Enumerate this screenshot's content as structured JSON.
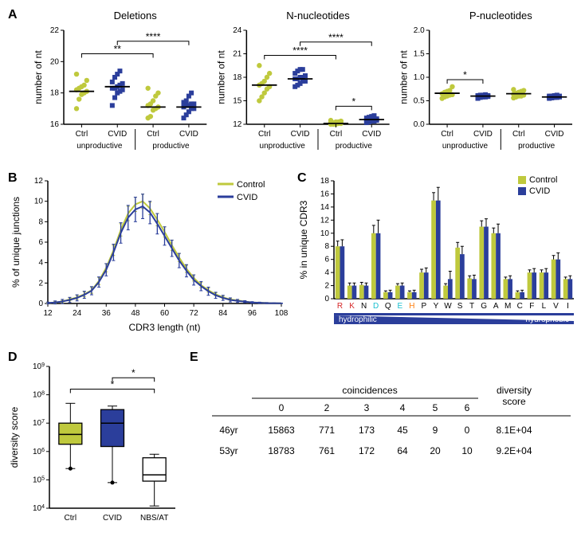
{
  "palette": {
    "control": "#bfc93d",
    "cvid": "#2b3e9b",
    "axis": "#000000",
    "bg": "#ffffff",
    "text": "#000000",
    "red": "#d62728",
    "cyan": "#17becf",
    "orange": "#ff7f0e"
  },
  "panelA": {
    "letter": "A",
    "charts": [
      {
        "title": "Deletions",
        "ylabel": "number of nt",
        "ylim": [
          16,
          22
        ],
        "ytick_step": 2,
        "groups": [
          "Ctrl",
          "CVID",
          "Ctrl",
          "CVID"
        ],
        "subgroups": [
          "unproductive",
          "productive"
        ],
        "marker": [
          "circle",
          "square",
          "circle",
          "square"
        ],
        "color_idx": [
          0,
          1,
          0,
          1
        ],
        "points": [
          [
            17.6,
            18.0,
            18.2,
            18.4,
            18.5,
            18.1,
            17.9,
            18.8,
            19.2,
            17.0,
            18.3
          ],
          [
            17.7,
            18.3,
            18.4,
            18.5,
            18.6,
            18.7,
            18.2,
            19.0,
            19.4,
            19.2,
            17.2,
            18.1,
            18.3,
            18.0
          ],
          [
            17.1,
            16.9,
            17.0,
            17.2,
            17.3,
            17.5,
            16.4,
            17.8,
            18.0,
            18.3,
            16.5
          ],
          [
            16.6,
            17.0,
            17.1,
            17.2,
            17.3,
            17.4,
            17.5,
            17.8,
            18.0,
            16.4,
            16.8,
            17.0,
            17.2,
            17.3
          ]
        ],
        "medians": [
          18.1,
          18.4,
          17.1,
          17.1
        ],
        "sig": [
          {
            "from": 0,
            "to": 2,
            "label": "**",
            "y": 20.5
          },
          {
            "from": 1,
            "to": 3,
            "label": "****",
            "y": 21.3
          }
        ]
      },
      {
        "title": "N-nucleotides",
        "ylabel": "number of nt",
        "ylim": [
          12,
          24
        ],
        "ytick_step": 3,
        "groups": [
          "Ctrl",
          "CVID",
          "Ctrl",
          "CVID"
        ],
        "subgroups": [
          "unproductive",
          "productive"
        ],
        "marker": [
          "circle",
          "square",
          "circle",
          "square"
        ],
        "color_idx": [
          0,
          1,
          0,
          1
        ],
        "points": [
          [
            15.0,
            15.5,
            16.0,
            16.5,
            17.0,
            17.2,
            17.5,
            18.0,
            18.5,
            19.5,
            16.8
          ],
          [
            16.8,
            17.2,
            17.5,
            17.8,
            18.0,
            18.2,
            18.5,
            18.8,
            19.0,
            19.0,
            17.5,
            17.0,
            18.0,
            17.8
          ],
          [
            12.0,
            12.0,
            12.1,
            12.1,
            12.2,
            12.2,
            12.3,
            12.4,
            12.5,
            12.0,
            12.3
          ],
          [
            12.4,
            12.5,
            12.6,
            12.7,
            12.8,
            12.9,
            13.0,
            13.1,
            12.2,
            12.3,
            12.5,
            12.7,
            12.6,
            12.4
          ]
        ],
        "medians": [
          17.0,
          17.8,
          12.1,
          12.6
        ],
        "sig": [
          {
            "from": 0,
            "to": 2,
            "label": "****",
            "y": 20.8
          },
          {
            "from": 1,
            "to": 3,
            "label": "****",
            "y": 22.5
          },
          {
            "from": 2,
            "to": 3,
            "label": "*",
            "y": 14.3
          }
        ]
      },
      {
        "title": "P-nucleotides",
        "ylabel": "number of nt",
        "ylim": [
          0.0,
          2.0
        ],
        "ytick_step": 0.5,
        "groups": [
          "Ctrl",
          "CVID",
          "Ctrl",
          "CVID"
        ],
        "subgroups": [
          "unproductive",
          "productive"
        ],
        "marker": [
          "circle",
          "square",
          "circle",
          "square"
        ],
        "color_idx": [
          0,
          1,
          0,
          1
        ],
        "points": [
          [
            0.58,
            0.6,
            0.62,
            0.65,
            0.68,
            0.7,
            0.72,
            0.8,
            0.55,
            0.63
          ],
          [
            0.55,
            0.57,
            0.58,
            0.59,
            0.6,
            0.61,
            0.62,
            0.63,
            0.58,
            0.6,
            0.61,
            0.62,
            0.6,
            0.59
          ],
          [
            0.58,
            0.6,
            0.62,
            0.64,
            0.66,
            0.68,
            0.7,
            0.72,
            0.74,
            0.56,
            0.6
          ],
          [
            0.55,
            0.56,
            0.57,
            0.58,
            0.58,
            0.59,
            0.6,
            0.6,
            0.61,
            0.62,
            0.58,
            0.59,
            0.6,
            0.57
          ]
        ],
        "medians": [
          0.66,
          0.6,
          0.65,
          0.58
        ],
        "sig": [
          {
            "from": 0,
            "to": 1,
            "label": "*",
            "y": 0.95
          }
        ]
      }
    ]
  },
  "panelB": {
    "letter": "B",
    "type": "line",
    "xlabel": "CDR3 length (nt)",
    "ylabel": "% of unique junctions",
    "xlim": [
      12,
      108
    ],
    "xtick_step": 12,
    "ylim": [
      0,
      12
    ],
    "ytick_step": 2,
    "series": [
      {
        "name": "Control",
        "color_idx": 0,
        "x": [
          12,
          15,
          18,
          21,
          24,
          27,
          30,
          33,
          36,
          39,
          42,
          45,
          48,
          51,
          54,
          57,
          60,
          63,
          66,
          69,
          72,
          75,
          78,
          81,
          84,
          87,
          90,
          93,
          96,
          99,
          102,
          105,
          108
        ],
        "y": [
          0.05,
          0.1,
          0.2,
          0.4,
          0.6,
          0.9,
          1.3,
          2.2,
          3.5,
          5.2,
          7.2,
          8.8,
          9.7,
          10.0,
          9.3,
          8.2,
          7.0,
          5.7,
          4.5,
          3.4,
          2.5,
          1.8,
          1.3,
          0.9,
          0.6,
          0.4,
          0.3,
          0.2,
          0.1,
          0.08,
          0.05,
          0.03,
          0.02
        ],
        "err": [
          0.05,
          0.1,
          0.1,
          0.15,
          0.2,
          0.25,
          0.3,
          0.35,
          0.4,
          0.5,
          0.6,
          0.7,
          0.7,
          0.7,
          0.6,
          0.6,
          0.5,
          0.5,
          0.4,
          0.35,
          0.3,
          0.25,
          0.2,
          0.15,
          0.12,
          0.1,
          0.08,
          0.06,
          0.05,
          0.04,
          0.03,
          0.02,
          0.02
        ]
      },
      {
        "name": "CVID",
        "color_idx": 1,
        "x": [
          12,
          15,
          18,
          21,
          24,
          27,
          30,
          33,
          36,
          39,
          42,
          45,
          48,
          51,
          54,
          57,
          60,
          63,
          66,
          69,
          72,
          75,
          78,
          81,
          84,
          87,
          90,
          93,
          96,
          99,
          102,
          105,
          108
        ],
        "y": [
          0.05,
          0.1,
          0.2,
          0.35,
          0.55,
          0.85,
          1.25,
          2.1,
          3.3,
          5.0,
          6.9,
          8.4,
          9.2,
          9.5,
          8.9,
          7.8,
          6.6,
          5.4,
          4.2,
          3.2,
          2.3,
          1.7,
          1.2,
          0.8,
          0.55,
          0.35,
          0.25,
          0.18,
          0.1,
          0.07,
          0.04,
          0.03,
          0.02
        ],
        "err": [
          0.08,
          0.15,
          0.2,
          0.25,
          0.3,
          0.35,
          0.4,
          0.5,
          0.6,
          0.8,
          1.0,
          1.2,
          1.2,
          1.2,
          1.1,
          1.0,
          0.9,
          0.8,
          0.7,
          0.6,
          0.5,
          0.45,
          0.4,
          0.3,
          0.25,
          0.2,
          0.15,
          0.1,
          0.08,
          0.06,
          0.05,
          0.03,
          0.02
        ]
      }
    ],
    "legend": [
      "Control",
      "CVID"
    ]
  },
  "panelC": {
    "letter": "C",
    "type": "bar",
    "ylabel": "% in unique CDR3",
    "ylim": [
      0,
      18
    ],
    "ytick_step": 2,
    "categories": [
      "R",
      "K",
      "N",
      "D",
      "Q",
      "E",
      "H",
      "P",
      "Y",
      "W",
      "S",
      "T",
      "G",
      "A",
      "M",
      "C",
      "F",
      "L",
      "V",
      "I"
    ],
    "cat_color": [
      "red",
      "red",
      "text",
      "cyan",
      "text",
      "cyan",
      "orange",
      "text",
      "text",
      "text",
      "text",
      "text",
      "text",
      "text",
      "text",
      "text",
      "text",
      "text",
      "text",
      "text"
    ],
    "wedge_label_left": "hydrophilic",
    "wedge_label_right": "hydrophobic",
    "series": [
      {
        "name": "Control",
        "color_idx": 0,
        "y": [
          8.0,
          2.0,
          2.1,
          10.0,
          1.0,
          2.0,
          1.0,
          4.0,
          15.0,
          2.0,
          7.8,
          3.1,
          11.0,
          10.0,
          3.0,
          1.0,
          4.0,
          4.0,
          6.0,
          3.0
        ],
        "err": [
          0.8,
          0.4,
          0.4,
          1.2,
          0.2,
          0.3,
          0.2,
          0.5,
          1.2,
          0.3,
          0.8,
          0.4,
          0.9,
          0.8,
          0.3,
          0.2,
          0.4,
          0.4,
          0.6,
          0.3
        ]
      },
      {
        "name": "CVID",
        "color_idx": 1,
        "y": [
          8.0,
          2.0,
          2.0,
          10.0,
          1.0,
          2.0,
          1.0,
          4.0,
          15.0,
          3.0,
          6.8,
          3.0,
          11.0,
          10.0,
          3.0,
          1.0,
          4.0,
          4.0,
          6.0,
          3.0
        ],
        "err": [
          1.0,
          0.4,
          0.4,
          2.0,
          0.3,
          0.4,
          0.3,
          0.7,
          2.0,
          1.2,
          1.2,
          0.6,
          1.2,
          1.4,
          0.5,
          0.3,
          0.6,
          0.6,
          1.0,
          0.5
        ]
      }
    ],
    "legend": [
      "Control",
      "CVID"
    ]
  },
  "panelD": {
    "letter": "D",
    "type": "box",
    "ylabel": "diversity score",
    "ylim_exp": [
      4,
      9
    ],
    "ytick_exp": [
      4,
      5,
      6,
      7,
      8,
      9
    ],
    "categories": [
      "Ctrl",
      "CVID",
      "NBS/AT"
    ],
    "boxes": [
      {
        "color_idx": 0,
        "min": 250000.0,
        "q1": 1800000.0,
        "med": 4000000.0,
        "q3": 10000000.0,
        "max": 50000000.0,
        "outliers": [
          250000.0
        ]
      },
      {
        "color_idx": 1,
        "min": 80000.0,
        "q1": 1500000.0,
        "med": 10000000.0,
        "q3": 30000000.0,
        "max": 40000000.0,
        "outliers": [
          80000.0
        ]
      },
      {
        "color_idx": null,
        "min": 12000.0,
        "q1": 90000.0,
        "med": 150000.0,
        "q3": 600000.0,
        "max": 800000.0,
        "outliers": []
      }
    ],
    "sig": [
      {
        "from": 0,
        "to": 2,
        "label": "*",
        "y_exp": 8.2
      },
      {
        "from": 1,
        "to": 2,
        "label": "*",
        "y_exp": 8.6
      }
    ]
  },
  "panelE": {
    "letter": "E",
    "header_top": "coincidences",
    "header_right": "diversity\nscore",
    "cols": [
      "0",
      "2",
      "3",
      "4",
      "5",
      "6"
    ],
    "row_heads": [
      "46yr",
      "53yr"
    ],
    "rows": [
      [
        "15863",
        "771",
        "173",
        "45",
        "9",
        "0",
        "8.1E+04"
      ],
      [
        "18783",
        "761",
        "172",
        "64",
        "20",
        "10",
        "9.2E+04"
      ]
    ]
  },
  "fontsize": {
    "axis_label": 12,
    "tick": 10,
    "title": 13,
    "legend": 11,
    "panel_letter": 16,
    "sig": 12,
    "table": 12
  }
}
